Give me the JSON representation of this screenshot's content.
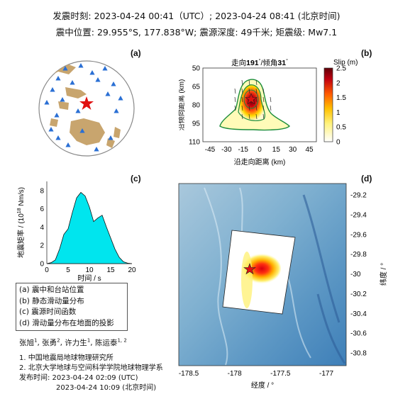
{
  "header": {
    "line1": "发震时刻: 2023-04-24 00:41（UTC）;   2023-04-24  08:41 (北京时间)",
    "line2": "震中位置: 29.955°S,  177.838°W;   震源深度: 49千米; 矩震级: Mw7.1"
  },
  "panels": {
    "a": "(a)",
    "b": "(b)",
    "c": "(c)",
    "d": "(d)"
  },
  "slip_panel": {
    "title_pre": "走向",
    "strike": "191",
    "title_mid": "/倾角",
    "dip": "31",
    "ylabel": "沿倾向距离 (km)",
    "xlabel": "沿走向距离 (km)",
    "colorbar_title": "Slip (m)",
    "yticks": [
      "50",
      "65",
      "80",
      "95",
      "110"
    ],
    "xticks": [
      "-45",
      "-30",
      "-15",
      "0",
      "15",
      "30",
      "45"
    ],
    "cbticks": [
      "2.5",
      "2",
      "1.5",
      "1",
      "0.5",
      "0"
    ]
  },
  "stf_panel": {
    "ylabel": "地震矩率 / (10",
    "ylabel_exp": "18",
    "ylabel_unit": " Nm/s)",
    "xlabel": "时间 / s",
    "yticks": [
      "0",
      "2",
      "4",
      "6",
      "8"
    ],
    "xticks": [
      "0",
      "5",
      "10",
      "15",
      "20"
    ]
  },
  "chart_data": {
    "type": "area",
    "x": [
      0,
      1,
      2,
      3,
      4,
      5,
      6,
      7,
      8,
      9,
      10,
      11,
      12,
      13,
      14,
      15,
      16,
      17,
      18,
      19,
      20
    ],
    "y": [
      0,
      0.1,
      0.4,
      1.6,
      3.2,
      3.8,
      5.6,
      7.2,
      7.8,
      7.4,
      6.2,
      4.6,
      5.0,
      5.3,
      4.0,
      2.8,
      1.6,
      0.7,
      0.2,
      0.05,
      0
    ],
    "xlim": [
      0,
      20
    ],
    "ylim": [
      0,
      9
    ]
  },
  "map_panel": {
    "ylabel": "纬度 / °",
    "xlabel": "经度 / °",
    "yticks": [
      "-29.2",
      "-29.4",
      "-29.6",
      "-29.8",
      "-30",
      "-30.2",
      "-30.4",
      "-30.6",
      "-30.8"
    ],
    "xticks": [
      "-178.5",
      "-178",
      "-177.5",
      "-177"
    ]
  },
  "legend": {
    "items": [
      "(a) 震中和台站位置",
      "(b) 静态滑动量分布",
      "(c) 震源时间函数",
      "(d) 滑动量分布在地面的投影"
    ]
  },
  "credits": {
    "authors": "张旭",
    "authors_sup1": "1",
    "authors_b": ", 张勇",
    "authors_sup2": "2",
    "authors_c": ", 许力生",
    "authors_sup3": "1",
    "authors_d": ", 陈运泰",
    "authors_sup4": "1, 2",
    "aff1": "1. 中国地震局地球物理研究所",
    "aff2": "2. 北京大学地球与空间科学学院地球物理学系",
    "pub1": "发布时间:    2023-04-24  02:09 (UTC)",
    "pub2": "2023-04-24  10:09 (北京时间)"
  },
  "colors": {
    "stf_fill": "#00e5ee",
    "globe_land": "#c8a56e",
    "station": "#2a6fd4",
    "epicenter": "#e01010"
  }
}
